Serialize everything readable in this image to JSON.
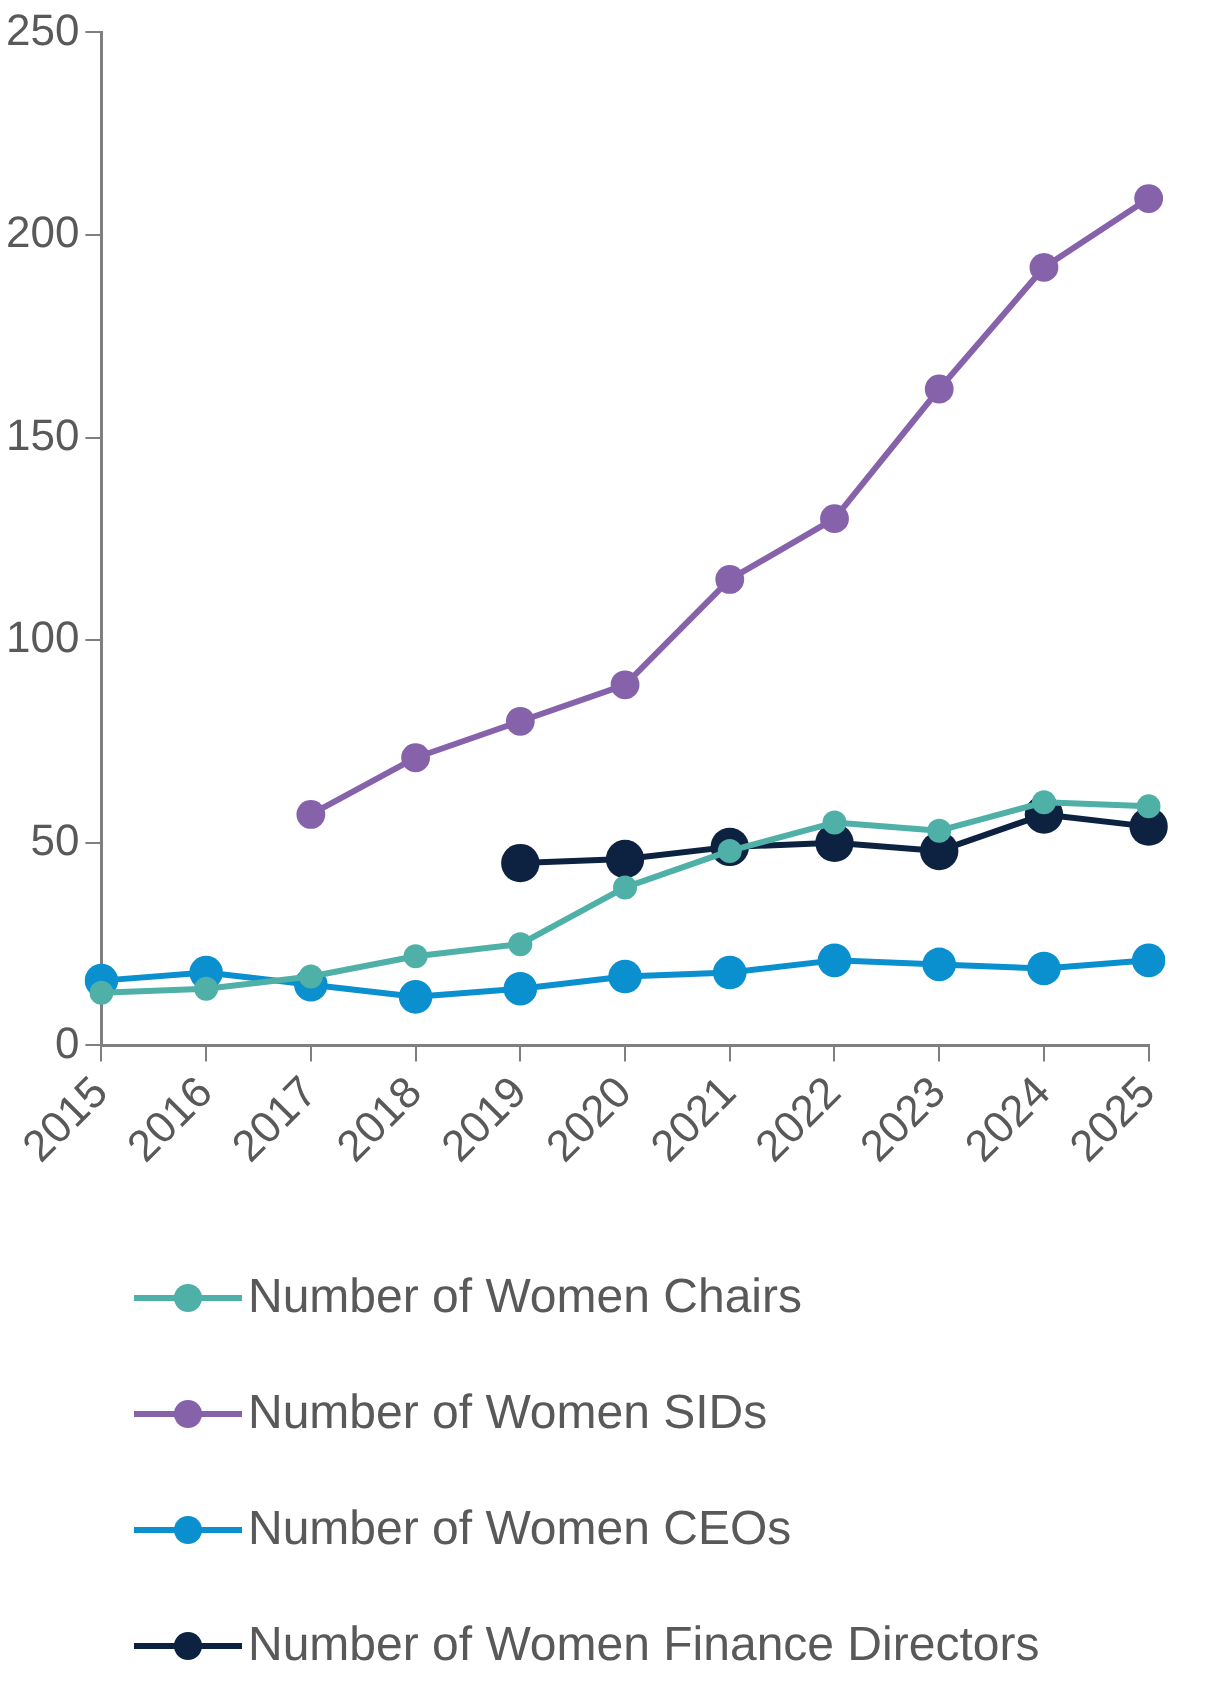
{
  "chart_data": {
    "type": "line",
    "categories": [
      "2015",
      "2016",
      "2017",
      "2018",
      "2019",
      "2020",
      "2021",
      "2022",
      "2023",
      "2024",
      "2025"
    ],
    "series": [
      {
        "name": "Number of Women Chairs",
        "color": "#4fb0a8",
        "values": [
          13,
          14,
          17,
          22,
          25,
          39,
          48,
          55,
          53,
          60,
          59
        ]
      },
      {
        "name": "Number of Women SIDs",
        "color": "#8662ab",
        "values": [
          null,
          null,
          57,
          71,
          80,
          89,
          115,
          130,
          162,
          192,
          209
        ]
      },
      {
        "name": "Number of Women CEOs",
        "color": "#0a8fcf",
        "values": [
          16,
          18,
          15,
          12,
          14,
          17,
          18,
          21,
          20,
          19,
          21
        ]
      },
      {
        "name": "Number of Women Finance Directors",
        "color": "#0d2240",
        "values": [
          null,
          null,
          null,
          null,
          45,
          46,
          49,
          50,
          48,
          57,
          54
        ]
      }
    ],
    "ylim": [
      0,
      250
    ],
    "yticks": [
      0,
      50,
      100,
      150,
      200,
      250
    ],
    "legend": "bottom",
    "marker": "circle",
    "line_style": "solid"
  }
}
